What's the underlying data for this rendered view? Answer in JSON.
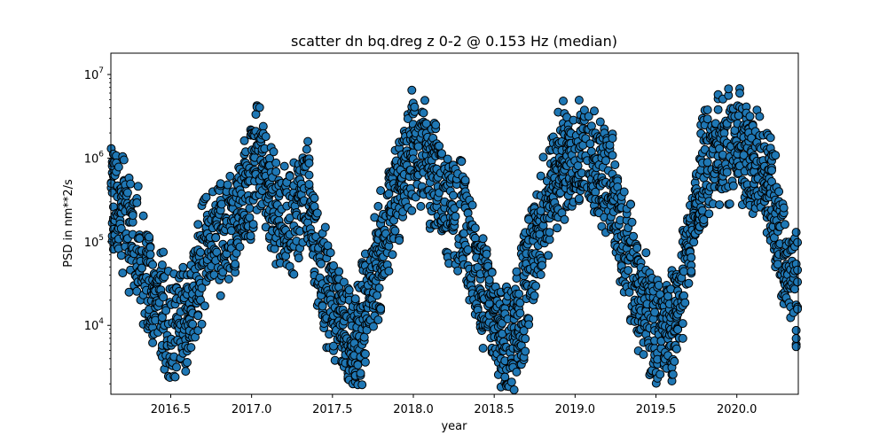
{
  "chart_data": {
    "type": "scatter",
    "title": "scatter dn bq.dreg z 0-2 @ 0.153 Hz (median)",
    "xlabel": "year",
    "ylabel": "PSD in nm**2/s",
    "xlim": [
      2016.13,
      2020.38
    ],
    "ylim": [
      1500,
      18000000
    ],
    "yscale": "log",
    "xticks": [
      2016.5,
      2017.0,
      2017.5,
      2018.0,
      2018.5,
      2019.0,
      2019.5,
      2020.0
    ],
    "xtick_labels": [
      "2016.5",
      "2017.0",
      "2017.5",
      "2018.0",
      "2018.5",
      "2019.0",
      "2019.5",
      "2020.0"
    ],
    "yticks": [
      10000,
      100000,
      1000000,
      10000000
    ],
    "ytick_labels": [
      [
        "10",
        "4"
      ],
      [
        "10",
        "5"
      ],
      [
        "10",
        "6"
      ],
      [
        "10",
        "7"
      ]
    ],
    "grid": false,
    "marker_color": "#1f77b4",
    "marker_edge_color": "#000000",
    "trend_points": [
      [
        2016.13,
        300000
      ],
      [
        2016.2,
        250000
      ],
      [
        2016.3,
        80000
      ],
      [
        2016.4,
        20000
      ],
      [
        2016.5,
        10000
      ],
      [
        2016.6,
        12000
      ],
      [
        2016.7,
        60000
      ],
      [
        2016.8,
        120000
      ],
      [
        2016.9,
        200000
      ],
      [
        2017.0,
        600000
      ],
      [
        2017.05,
        1200000
      ],
      [
        2017.1,
        400000
      ],
      [
        2017.2,
        150000
      ],
      [
        2017.3,
        250000
      ],
      [
        2017.35,
        600000
      ],
      [
        2017.4,
        60000
      ],
      [
        2017.5,
        20000
      ],
      [
        2017.6,
        8000
      ],
      [
        2017.65,
        6000
      ],
      [
        2017.7,
        15000
      ],
      [
        2017.8,
        80000
      ],
      [
        2017.9,
        400000
      ],
      [
        2018.0,
        1500000
      ],
      [
        2018.1,
        900000
      ],
      [
        2018.2,
        300000
      ],
      [
        2018.3,
        200000
      ],
      [
        2018.4,
        30000
      ],
      [
        2018.5,
        12000
      ],
      [
        2018.55,
        6000
      ],
      [
        2018.6,
        5000
      ],
      [
        2018.7,
        30000
      ],
      [
        2018.8,
        200000
      ],
      [
        2018.9,
        800000
      ],
      [
        2019.0,
        1000000
      ],
      [
        2019.1,
        900000
      ],
      [
        2019.2,
        600000
      ],
      [
        2019.3,
        100000
      ],
      [
        2019.4,
        20000
      ],
      [
        2019.5,
        8000
      ],
      [
        2019.6,
        10000
      ],
      [
        2019.65,
        20000
      ],
      [
        2019.7,
        100000
      ],
      [
        2019.8,
        800000
      ],
      [
        2019.9,
        1200000
      ],
      [
        2020.0,
        1500000
      ],
      [
        2020.1,
        800000
      ],
      [
        2020.2,
        600000
      ],
      [
        2020.3,
        50000
      ],
      [
        2020.38,
        30000
      ]
    ]
  }
}
